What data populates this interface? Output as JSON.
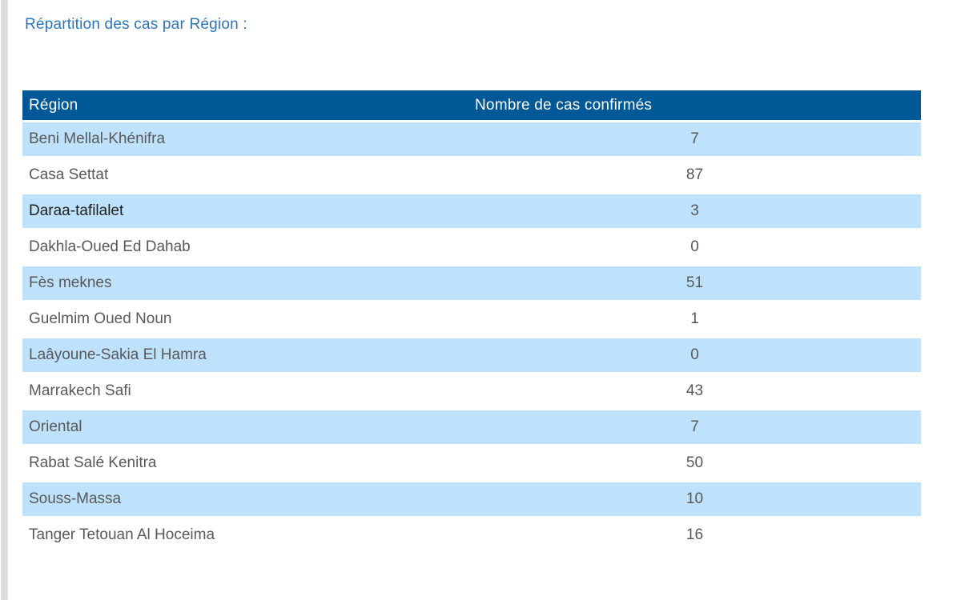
{
  "page": {
    "title": "Répartition des cas par Région :"
  },
  "table": {
    "columns": [
      {
        "key": "region",
        "label": "Région"
      },
      {
        "key": "cases",
        "label": "Nombre de cas confirmés"
      }
    ],
    "rows": [
      {
        "region": "Beni Mellal-Khénifra",
        "cases": "7",
        "highlighted": true,
        "emphasis": false
      },
      {
        "region": "Casa Settat",
        "cases": "87",
        "highlighted": false,
        "emphasis": false
      },
      {
        "region": "Daraa-tafilalet",
        "cases": "3",
        "highlighted": true,
        "emphasis": true
      },
      {
        "region": "Dakhla-Oued Ed Dahab",
        "cases": "0",
        "highlighted": false,
        "emphasis": false
      },
      {
        "region": "Fès meknes",
        "cases": "51",
        "highlighted": true,
        "emphasis": false
      },
      {
        "region": "Guelmim Oued Noun",
        "cases": "1",
        "highlighted": false,
        "emphasis": false
      },
      {
        "region": "Laâyoune-Sakia El Hamra",
        "cases": "0",
        "highlighted": true,
        "emphasis": false
      },
      {
        "region": "Marrakech Safi",
        "cases": "43",
        "highlighted": false,
        "emphasis": false
      },
      {
        "region": "Oriental",
        "cases": "7",
        "highlighted": true,
        "emphasis": false
      },
      {
        "region": "Rabat Salé Kenitra",
        "cases": "50",
        "highlighted": false,
        "emphasis": false
      },
      {
        "region": "Souss-Massa",
        "cases": "10",
        "highlighted": true,
        "emphasis": false
      },
      {
        "region": "Tanger Tetouan Al Hoceima",
        "cases": "16",
        "highlighted": false,
        "emphasis": false
      }
    ]
  },
  "colors": {
    "title_text": "#2E75B6",
    "header_bg": "#015896",
    "header_text": "#ffffff",
    "row_alt_bg": "#BEE1FC",
    "row_text": "#595959",
    "emphasis_text": "#1F1F1F",
    "page_edge_strip": "#dcdcdc"
  }
}
